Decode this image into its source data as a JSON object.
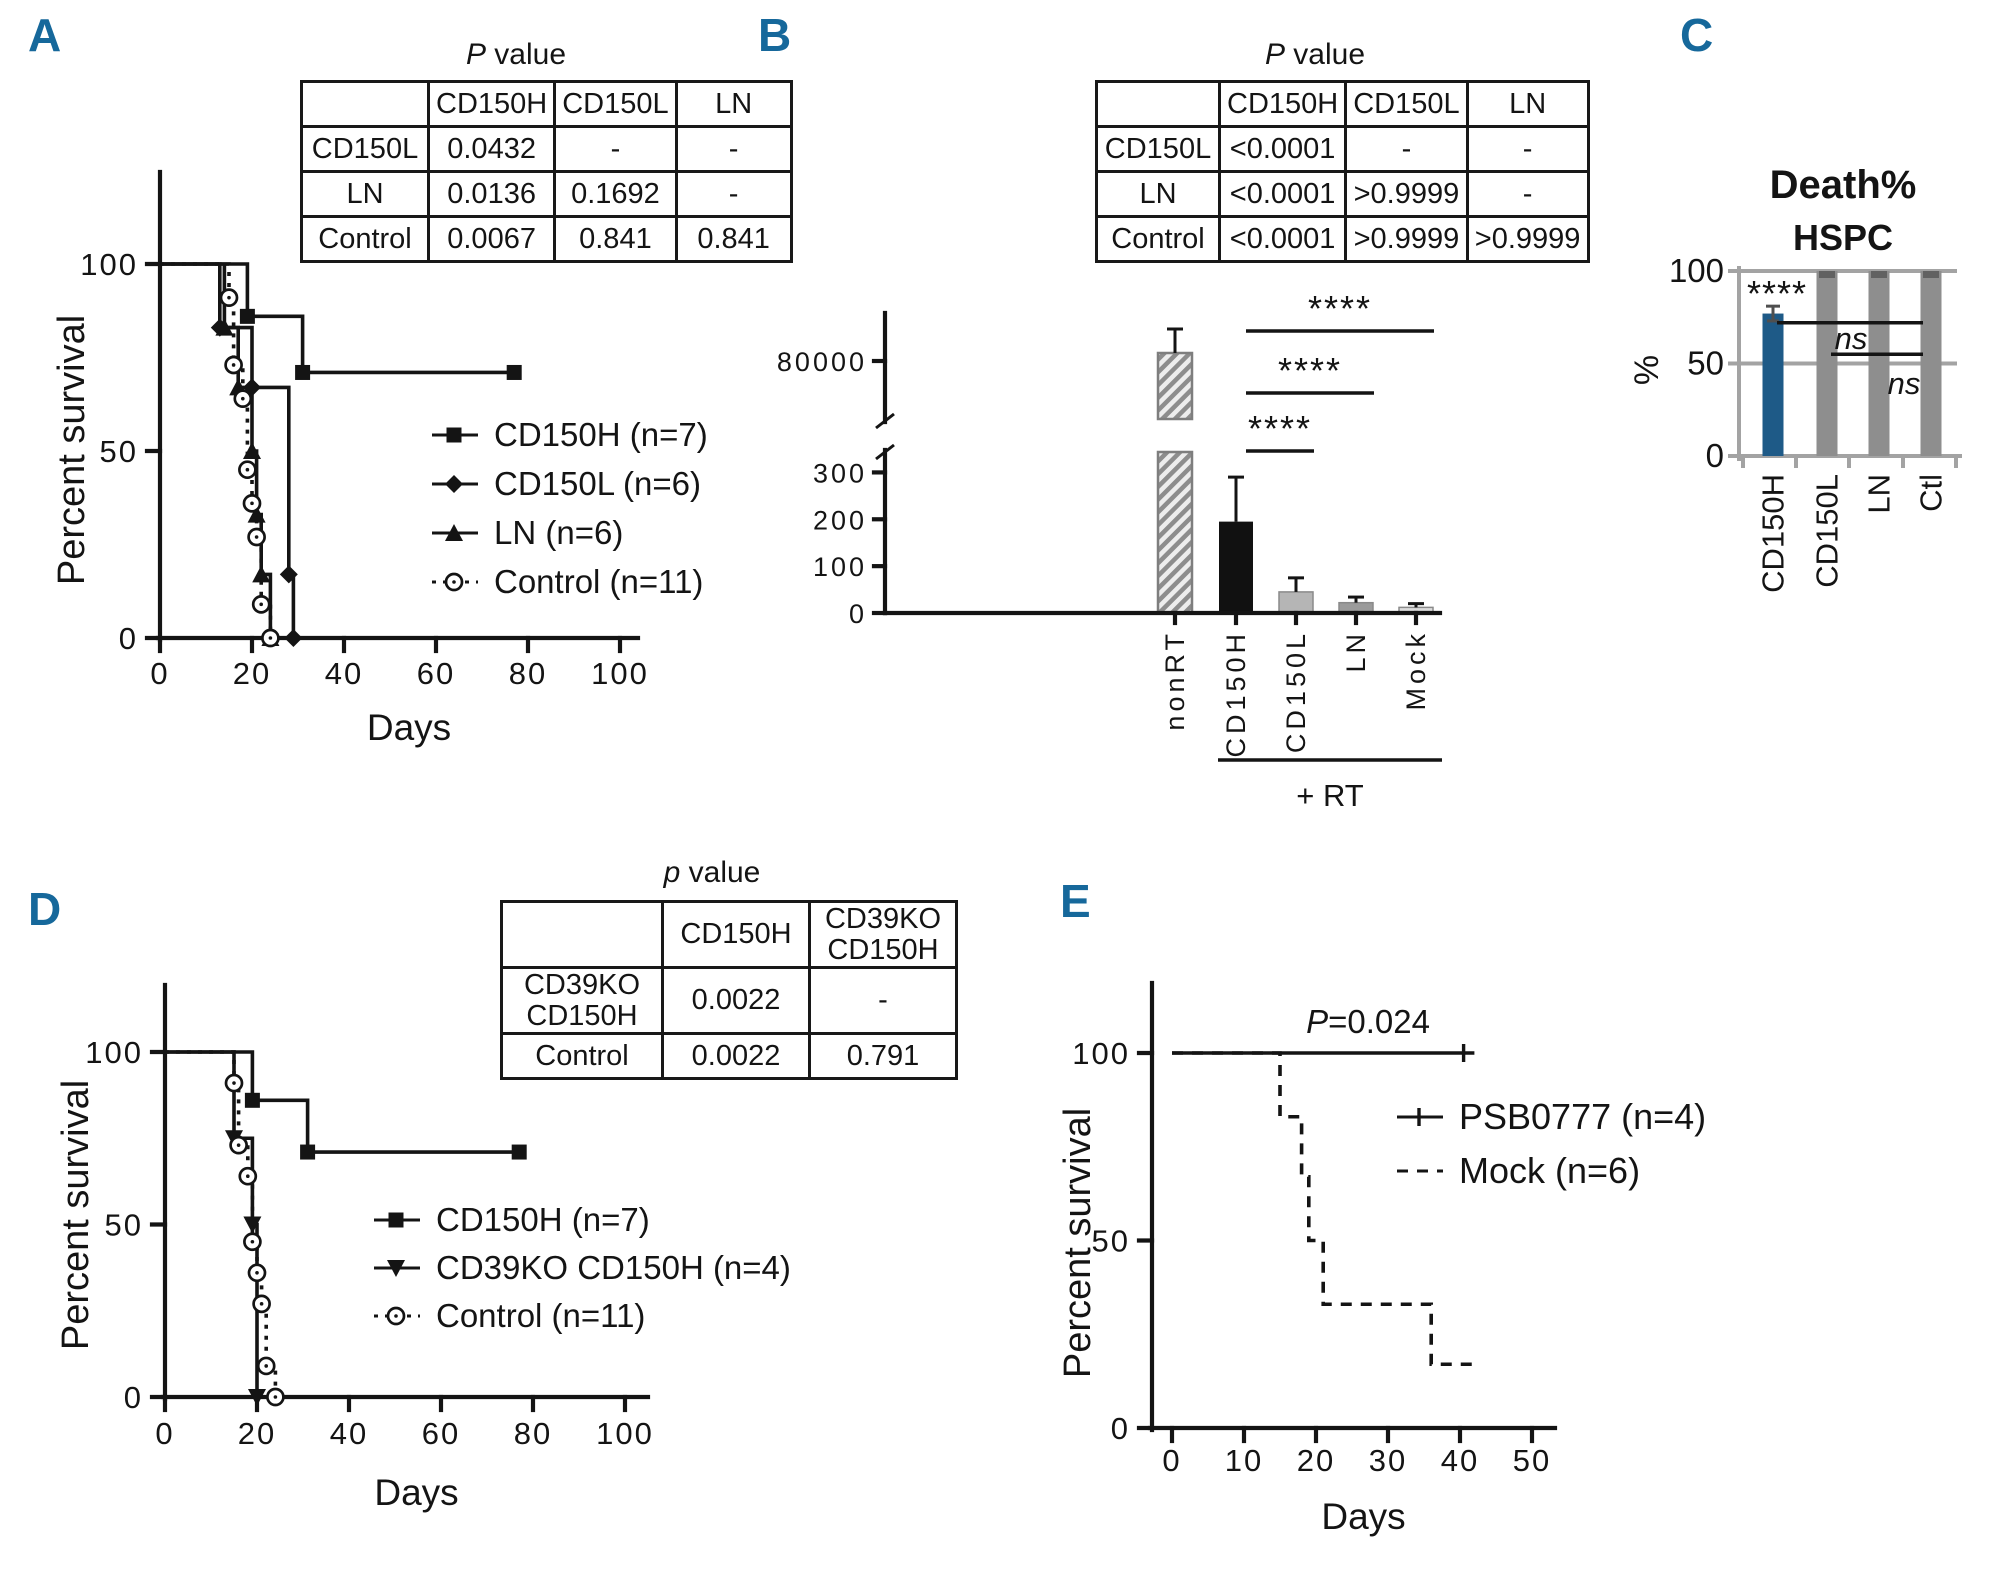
{
  "figure": {
    "panel_label_color": "#16689b",
    "panels": {
      "A": {
        "label": "A",
        "table_title": "P value",
        "table": {
          "header": [
            "",
            "CD150H",
            "CD150L",
            "LN"
          ],
          "rows": [
            [
              "CD150L",
              "0.0432",
              "-",
              "-"
            ],
            [
              "LN",
              "0.0136",
              "0.1692",
              "-"
            ],
            [
              "Control",
              "0.0067",
              "0.841",
              "0.841"
            ]
          ]
        }
      },
      "B": {
        "label": "B",
        "table_title": "P value",
        "table": {
          "header": [
            "",
            "CD150H",
            "CD150L",
            "LN"
          ],
          "rows": [
            [
              "CD150L",
              "<0.0001",
              "-",
              "-"
            ],
            [
              "LN",
              "<0.0001",
              ">0.9999",
              "-"
            ],
            [
              "Control",
              "<0.0001",
              ">0.9999",
              ">0.9999"
            ]
          ]
        }
      },
      "C": {
        "label": "C"
      },
      "D": {
        "label": "D",
        "table_title": "p value",
        "table": {
          "header": [
            "",
            "CD150H",
            "CD39KO\nCD150H"
          ],
          "rows": [
            [
              "CD39KO\nCD150H",
              "0.0022",
              "-"
            ],
            [
              "Control",
              "0.0022",
              "0.791"
            ]
          ]
        }
      },
      "E": {
        "label": "E"
      }
    }
  },
  "chart_data": [
    {
      "panel": "A",
      "type": "line",
      "subtype": "kaplan-meier",
      "xlabel": "Days",
      "ylabel": "Percent survival",
      "xlim": [
        0,
        100
      ],
      "xticks": [
        0,
        20,
        40,
        60,
        80,
        100
      ],
      "ylim": [
        0,
        100
      ],
      "yticks": [
        0,
        50,
        100
      ],
      "legend_position": "right-inside",
      "series": [
        {
          "name": "CD150H (n=7)",
          "marker": "square",
          "dash": "solid",
          "steps": [
            [
              0,
              100
            ],
            [
              19,
              100
            ],
            [
              19,
              86
            ],
            [
              31,
              86
            ],
            [
              31,
              71
            ],
            [
              77,
              71
            ]
          ],
          "markers_at": [
            [
              19,
              86
            ],
            [
              31,
              71
            ],
            [
              77,
              71
            ]
          ]
        },
        {
          "name": "CD150L (n=6)",
          "marker": "diamond",
          "dash": "solid",
          "steps": [
            [
              0,
              100
            ],
            [
              13,
              100
            ],
            [
              13,
              83
            ],
            [
              20,
              83
            ],
            [
              20,
              67
            ],
            [
              28,
              67
            ],
            [
              28,
              17
            ],
            [
              29,
              17
            ],
            [
              29,
              0
            ]
          ],
          "markers_at": [
            [
              13,
              83
            ],
            [
              20,
              67
            ],
            [
              28,
              17
            ],
            [
              29,
              0
            ]
          ]
        },
        {
          "name": "LN (n=6)",
          "marker": "triangle-up",
          "dash": "solid",
          "steps": [
            [
              0,
              100
            ],
            [
              14,
              100
            ],
            [
              14,
              83
            ],
            [
              17,
              83
            ],
            [
              17,
              67
            ],
            [
              20,
              67
            ],
            [
              20,
              50
            ],
            [
              21,
              50
            ],
            [
              21,
              33
            ],
            [
              22,
              33
            ],
            [
              22,
              17
            ],
            [
              24,
              17
            ],
            [
              24,
              0
            ]
          ],
          "markers_at": [
            [
              14,
              83
            ],
            [
              17,
              67
            ],
            [
              20,
              50
            ],
            [
              21,
              33
            ],
            [
              22,
              17
            ],
            [
              24,
              0
            ]
          ]
        },
        {
          "name": "Control (n=11)",
          "marker": "circle-open",
          "dash": "dash-small",
          "steps": [
            [
              0,
              100
            ],
            [
              15,
              100
            ],
            [
              15,
              91
            ],
            [
              16,
              91
            ],
            [
              16,
              73
            ],
            [
              18,
              73
            ],
            [
              18,
              64
            ],
            [
              19,
              64
            ],
            [
              19,
              45
            ],
            [
              20,
              45
            ],
            [
              20,
              36
            ],
            [
              21,
              36
            ],
            [
              21,
              27
            ],
            [
              22,
              27
            ],
            [
              22,
              9
            ],
            [
              24,
              9
            ],
            [
              24,
              0
            ]
          ],
          "markers_at": [
            [
              15,
              91
            ],
            [
              16,
              73
            ],
            [
              18,
              64
            ],
            [
              19,
              45
            ],
            [
              20,
              36
            ],
            [
              21,
              27
            ],
            [
              22,
              9
            ],
            [
              24,
              0
            ]
          ]
        }
      ]
    },
    {
      "panel": "B",
      "type": "bar",
      "broken_axis": true,
      "categories": [
        "nonRT",
        "CD150H",
        "CD150L",
        "LN",
        "Mock"
      ],
      "values": [
        82000,
        195,
        45,
        22,
        12
      ],
      "errors": [
        6000,
        95,
        30,
        12,
        8
      ],
      "bar_colors": [
        "hatched",
        "#111111",
        "#b5b5b5",
        "#9b9b9b",
        "#dcdcdc"
      ],
      "hatch": {
        "fill": "#ededed",
        "stripe": "#8d8d8d"
      },
      "yticks_lower": [
        0,
        100,
        200,
        300
      ],
      "yticks_upper": [
        80000
      ],
      "lower_axis_max": 350,
      "sig_comparisons": [
        {
          "from": "CD150H",
          "to": "CD150L",
          "label": "****"
        },
        {
          "from": "CD150H",
          "to": "LN",
          "label": "****"
        },
        {
          "from": "CD150H",
          "to": "Mock",
          "label": "****"
        }
      ],
      "group_label": "+ RT",
      "group_span": [
        "CD150H",
        "Mock"
      ]
    },
    {
      "panel": "C",
      "type": "bar",
      "title": "Death%",
      "subtitle": "HSPC",
      "ylabel": "%",
      "categories": [
        "CD150H",
        "CD150L",
        "LN",
        "Ctl"
      ],
      "values": [
        77,
        100,
        100,
        100
      ],
      "errors": [
        4,
        2,
        2,
        2
      ],
      "bar_colors": [
        "#1e5a87",
        "#8e8e8e",
        "#8e8e8e",
        "#8e8e8e"
      ],
      "ylim": [
        0,
        100
      ],
      "yticks": [
        0,
        50,
        100
      ],
      "gridlines": [
        50,
        100
      ],
      "star_label": "****",
      "ns_labels": [
        "ns",
        "ns"
      ],
      "sig_lines": [
        {
          "from": "CD150H",
          "to": "Ctl",
          "y_pct": 72
        },
        {
          "from": "CD150L",
          "to": "Ctl",
          "y_pct": 55
        }
      ]
    },
    {
      "panel": "D",
      "type": "line",
      "subtype": "kaplan-meier",
      "xlabel": "Days",
      "ylabel": "Percent survival",
      "xlim": [
        0,
        100
      ],
      "xticks": [
        0,
        20,
        40,
        60,
        80,
        100
      ],
      "ylim": [
        0,
        100
      ],
      "yticks": [
        0,
        50,
        100
      ],
      "legend_position": "right-inside",
      "series": [
        {
          "name": "CD150H (n=7)",
          "marker": "square",
          "dash": "solid",
          "steps": [
            [
              0,
              100
            ],
            [
              19,
              100
            ],
            [
              19,
              86
            ],
            [
              31,
              86
            ],
            [
              31,
              71
            ],
            [
              77,
              71
            ]
          ],
          "markers_at": [
            [
              19,
              86
            ],
            [
              31,
              71
            ],
            [
              77,
              71
            ]
          ]
        },
        {
          "name": "CD39KO CD150H (n=4)",
          "marker": "triangle-down",
          "dash": "solid",
          "steps": [
            [
              0,
              100
            ],
            [
              15,
              100
            ],
            [
              15,
              75
            ],
            [
              19,
              75
            ],
            [
              19,
              50
            ],
            [
              20,
              50
            ],
            [
              20,
              0
            ]
          ],
          "markers_at": [
            [
              15,
              75
            ],
            [
              19,
              50
            ],
            [
              20,
              0
            ]
          ]
        },
        {
          "name": "Control (n=11)",
          "marker": "circle-open",
          "dash": "dash-small",
          "steps": [
            [
              0,
              100
            ],
            [
              15,
              100
            ],
            [
              15,
              91
            ],
            [
              16,
              91
            ],
            [
              16,
              73
            ],
            [
              18,
              73
            ],
            [
              18,
              64
            ],
            [
              19,
              64
            ],
            [
              19,
              45
            ],
            [
              20,
              45
            ],
            [
              20,
              36
            ],
            [
              21,
              36
            ],
            [
              21,
              27
            ],
            [
              22,
              27
            ],
            [
              22,
              9
            ],
            [
              24,
              9
            ],
            [
              24,
              0
            ]
          ],
          "markers_at": [
            [
              15,
              91
            ],
            [
              16,
              73
            ],
            [
              18,
              64
            ],
            [
              19,
              45
            ],
            [
              20,
              36
            ],
            [
              21,
              27
            ],
            [
              22,
              9
            ],
            [
              24,
              0
            ]
          ]
        }
      ]
    },
    {
      "panel": "E",
      "type": "line",
      "subtype": "kaplan-meier",
      "xlabel": "Days",
      "ylabel": "Percent survival",
      "xlim": [
        0,
        50
      ],
      "xticks": [
        0,
        10,
        20,
        30,
        40,
        50
      ],
      "ylim": [
        0,
        100
      ],
      "yticks": [
        0,
        50,
        100
      ],
      "annotation": {
        "prefix": "P",
        "rest": "=0.024"
      },
      "legend_position": "right-inside",
      "series": [
        {
          "name": "PSB0777 (n=4)",
          "marker": "censor-tick",
          "dash": "solid",
          "steps": [
            [
              0,
              100
            ],
            [
              42,
              100
            ]
          ],
          "censors": [
            [
              40.5,
              100
            ]
          ]
        },
        {
          "name": "Mock (n=6)",
          "marker": "none",
          "dash": "dashed",
          "steps": [
            [
              0,
              100
            ],
            [
              15,
              100
            ],
            [
              15,
              83
            ],
            [
              18,
              83
            ],
            [
              18,
              67
            ],
            [
              19,
              67
            ],
            [
              19,
              50
            ],
            [
              21,
              50
            ],
            [
              21,
              33
            ],
            [
              36,
              33
            ],
            [
              36,
              17
            ],
            [
              42,
              17
            ]
          ]
        }
      ]
    }
  ]
}
